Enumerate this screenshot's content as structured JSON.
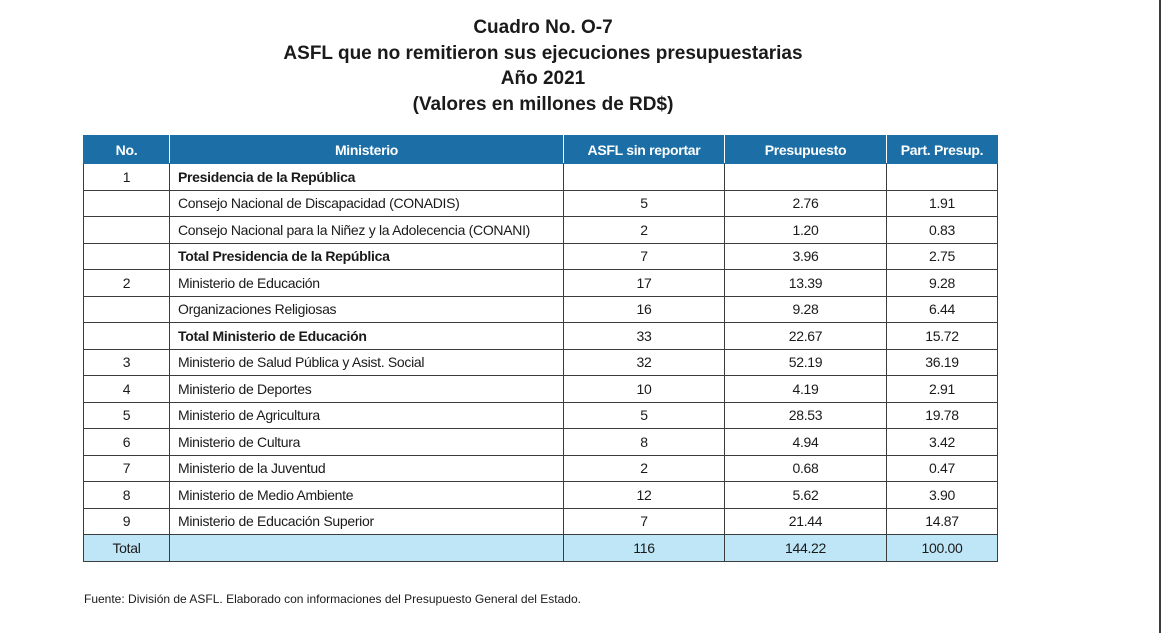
{
  "title": {
    "line1": "Cuadro No. O-7",
    "line2": "ASFL que no remitieron sus ejecuciones presupuestarias",
    "line3": "Año 2021",
    "line4": "(Valores en millones de RD$)"
  },
  "table": {
    "headers": [
      "No.",
      "Ministerio",
      "ASFL sin reportar",
      "Presupuesto",
      "Part. Presup."
    ],
    "rows": [
      {
        "no": "1",
        "ministerio": "Presidencia de la República",
        "asfl": "",
        "presupuesto": "",
        "part": "",
        "bold": true
      },
      {
        "no": "",
        "ministerio": "Consejo Nacional  de Discapacidad (CONADIS)",
        "asfl": "5",
        "presupuesto": "2.76",
        "part": "1.91",
        "bold": false
      },
      {
        "no": "",
        "ministerio": "Consejo Nacional para la Niñez y la Adolecencia (CONANI)",
        "asfl": "2",
        "presupuesto": "1.20",
        "part": "0.83",
        "bold": false
      },
      {
        "no": "",
        "ministerio": "Total Presidencia de la República",
        "asfl": "7",
        "presupuesto": "3.96",
        "part": "2.75",
        "bold": true
      },
      {
        "no": "2",
        "ministerio": "Ministerio de Educación",
        "asfl": "17",
        "presupuesto": "13.39",
        "part": "9.28",
        "bold": false
      },
      {
        "no": "",
        "ministerio": "Organizaciones Religiosas",
        "asfl": "16",
        "presupuesto": "9.28",
        "part": "6.44",
        "bold": false
      },
      {
        "no": "",
        "ministerio": "Total Ministerio de Educación",
        "asfl": "33",
        "presupuesto": "22.67",
        "part": "15.72",
        "bold": true
      },
      {
        "no": "3",
        "ministerio": "Ministerio de Salud Pública y Asist. Social",
        "asfl": "32",
        "presupuesto": "52.19",
        "part": "36.19",
        "bold": false
      },
      {
        "no": "4",
        "ministerio": "Ministerio de Deportes",
        "asfl": "10",
        "presupuesto": "4.19",
        "part": "2.91",
        "bold": false
      },
      {
        "no": "5",
        "ministerio": "Ministerio de Agricultura",
        "asfl": "5",
        "presupuesto": "28.53",
        "part": "19.78",
        "bold": false
      },
      {
        "no": "6",
        "ministerio": "Ministerio de Cultura",
        "asfl": "8",
        "presupuesto": "4.94",
        "part": "3.42",
        "bold": false
      },
      {
        "no": "7",
        "ministerio": "Ministerio de la Juventud",
        "asfl": "2",
        "presupuesto": "0.68",
        "part": "0.47",
        "bold": false
      },
      {
        "no": "8",
        "ministerio": "Ministerio de Medio Ambiente",
        "asfl": "12",
        "presupuesto": "5.62",
        "part": "3.90",
        "bold": false
      },
      {
        "no": "9",
        "ministerio": "Ministerio de Educación Superior",
        "asfl": "7",
        "presupuesto": "21.44",
        "part": "14.87",
        "bold": false
      }
    ],
    "total": {
      "no": "Total",
      "ministerio": "",
      "asfl": "116",
      "presupuesto": "144.22",
      "part": "100.00"
    }
  },
  "source": "Fuente: División de ASFL. Elaborado con informaciones del Presupuesto General del Estado.",
  "colors": {
    "header_bg": "#1b6ea6",
    "total_bg": "#bfe6f7"
  }
}
